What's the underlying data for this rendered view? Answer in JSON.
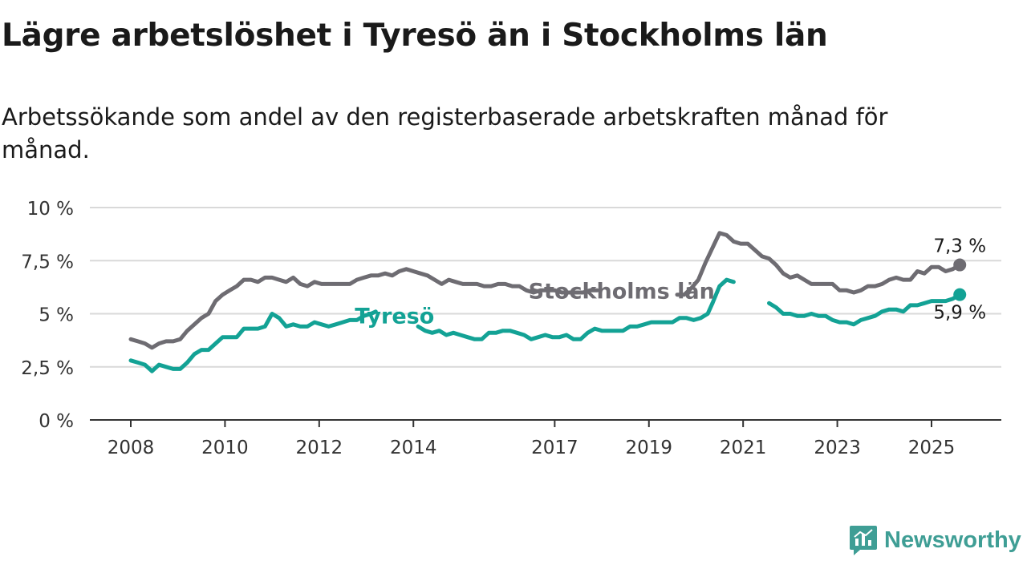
{
  "title": "Lägre arbetslöshet i Tyresö än i Stockholms län",
  "subtitle": "Arbetssökande som andel av den registerbaserade arbetskraften månad för månad.",
  "brand": "Newsworthy",
  "colors": {
    "stockholm": "#6e6c72",
    "tyreso": "#13a295",
    "grid": "#d9d9d9",
    "axis": "#333333",
    "brand": "#3f9e95"
  },
  "chart_data": {
    "type": "line",
    "ylim": [
      0,
      10
    ],
    "xlim": [
      2008.0,
      2025.75
    ],
    "grid": true,
    "y_ticks": [
      {
        "value": 0,
        "label": "0 %"
      },
      {
        "value": 2.5,
        "label": "2,5 %"
      },
      {
        "value": 5,
        "label": "5 %"
      },
      {
        "value": 7.5,
        "label": "7,5 %"
      },
      {
        "value": 10,
        "label": "10 %"
      }
    ],
    "x_ticks": [
      {
        "value": 2008,
        "label": "2008"
      },
      {
        "value": 2010,
        "label": "2010"
      },
      {
        "value": 2012,
        "label": "2012"
      },
      {
        "value": 2014,
        "label": "2014"
      },
      {
        "value": 2017,
        "label": "2017"
      },
      {
        "value": 2019,
        "label": "2019"
      },
      {
        "value": 2021,
        "label": "2021"
      },
      {
        "value": 2023,
        "label": "2023"
      },
      {
        "value": 2025,
        "label": "2025"
      }
    ],
    "series": [
      {
        "name": "Stockholms län",
        "end_label": "7,3 %",
        "points": [
          [
            2008.0,
            3.8
          ],
          [
            2008.15,
            3.7
          ],
          [
            2008.3,
            3.6
          ],
          [
            2008.45,
            3.4
          ],
          [
            2008.6,
            3.6
          ],
          [
            2008.75,
            3.7
          ],
          [
            2008.9,
            3.7
          ],
          [
            2009.05,
            3.8
          ],
          [
            2009.2,
            4.2
          ],
          [
            2009.35,
            4.5
          ],
          [
            2009.5,
            4.8
          ],
          [
            2009.65,
            5.0
          ],
          [
            2009.8,
            5.6
          ],
          [
            2009.95,
            5.9
          ],
          [
            2010.1,
            6.1
          ],
          [
            2010.25,
            6.3
          ],
          [
            2010.4,
            6.6
          ],
          [
            2010.55,
            6.6
          ],
          [
            2010.7,
            6.5
          ],
          [
            2010.85,
            6.7
          ],
          [
            2011.0,
            6.7
          ],
          [
            2011.15,
            6.6
          ],
          [
            2011.3,
            6.5
          ],
          [
            2011.45,
            6.7
          ],
          [
            2011.6,
            6.4
          ],
          [
            2011.75,
            6.3
          ],
          [
            2011.9,
            6.5
          ],
          [
            2012.05,
            6.4
          ],
          [
            2012.2,
            6.4
          ],
          [
            2012.35,
            6.4
          ],
          [
            2012.5,
            6.4
          ],
          [
            2012.65,
            6.4
          ],
          [
            2012.8,
            6.6
          ],
          [
            2012.95,
            6.7
          ],
          [
            2013.1,
            6.8
          ],
          [
            2013.25,
            6.8
          ],
          [
            2013.4,
            6.9
          ],
          [
            2013.55,
            6.8
          ],
          [
            2013.7,
            7.0
          ],
          [
            2013.85,
            7.1
          ],
          [
            2014.0,
            7.0
          ],
          [
            2014.15,
            6.9
          ],
          [
            2014.3,
            6.8
          ],
          [
            2014.45,
            6.6
          ],
          [
            2014.6,
            6.4
          ],
          [
            2014.75,
            6.6
          ],
          [
            2014.9,
            6.5
          ],
          [
            2015.05,
            6.4
          ],
          [
            2015.2,
            6.4
          ],
          [
            2015.35,
            6.4
          ],
          [
            2015.5,
            6.3
          ],
          [
            2015.65,
            6.3
          ],
          [
            2015.8,
            6.4
          ],
          [
            2015.95,
            6.4
          ],
          [
            2016.1,
            6.3
          ],
          [
            2016.25,
            6.3
          ],
          [
            2016.4,
            6.1
          ],
          [
            2016.55,
            6.0
          ],
          [
            2016.7,
            6.1
          ],
          [
            2016.85,
            6.1
          ],
          [
            2017.0,
            6.1
          ],
          [
            2017.15,
            6.0
          ],
          [
            2017.3,
            6.0
          ],
          [
            2017.45,
            6.0
          ],
          [
            2017.6,
            6.0
          ],
          [
            2017.75,
            6.1
          ],
          [
            2017.9,
            6.1
          ],
          [
            2019.6,
            5.9
          ],
          [
            2019.75,
            5.9
          ],
          [
            2019.9,
            6.2
          ],
          [
            2020.05,
            6.6
          ],
          [
            2020.2,
            7.4
          ],
          [
            2020.35,
            8.1
          ],
          [
            2020.5,
            8.8
          ],
          [
            2020.65,
            8.7
          ],
          [
            2020.8,
            8.4
          ],
          [
            2020.95,
            8.3
          ],
          [
            2021.1,
            8.3
          ],
          [
            2021.25,
            8.0
          ],
          [
            2021.4,
            7.7
          ],
          [
            2021.55,
            7.6
          ],
          [
            2021.7,
            7.3
          ],
          [
            2021.85,
            6.9
          ],
          [
            2022.0,
            6.7
          ],
          [
            2022.15,
            6.8
          ],
          [
            2022.3,
            6.6
          ],
          [
            2022.45,
            6.4
          ],
          [
            2022.6,
            6.4
          ],
          [
            2022.75,
            6.4
          ],
          [
            2022.9,
            6.4
          ],
          [
            2023.05,
            6.1
          ],
          [
            2023.2,
            6.1
          ],
          [
            2023.35,
            6.0
          ],
          [
            2023.5,
            6.1
          ],
          [
            2023.65,
            6.3
          ],
          [
            2023.8,
            6.3
          ],
          [
            2023.95,
            6.4
          ],
          [
            2024.1,
            6.6
          ],
          [
            2024.25,
            6.7
          ],
          [
            2024.4,
            6.6
          ],
          [
            2024.55,
            6.6
          ],
          [
            2024.7,
            7.0
          ],
          [
            2024.85,
            6.9
          ],
          [
            2025.0,
            7.2
          ],
          [
            2025.15,
            7.2
          ],
          [
            2025.3,
            7.0
          ],
          [
            2025.45,
            7.1
          ],
          [
            2025.6,
            7.3
          ]
        ]
      },
      {
        "name": "Tyresö",
        "end_label": "5,9 %",
        "points": [
          [
            2008.0,
            2.8
          ],
          [
            2008.15,
            2.7
          ],
          [
            2008.3,
            2.6
          ],
          [
            2008.45,
            2.3
          ],
          [
            2008.6,
            2.6
          ],
          [
            2008.75,
            2.5
          ],
          [
            2008.9,
            2.4
          ],
          [
            2009.05,
            2.4
          ],
          [
            2009.2,
            2.7
          ],
          [
            2009.35,
            3.1
          ],
          [
            2009.5,
            3.3
          ],
          [
            2009.65,
            3.3
          ],
          [
            2009.8,
            3.6
          ],
          [
            2009.95,
            3.9
          ],
          [
            2010.1,
            3.9
          ],
          [
            2010.25,
            3.9
          ],
          [
            2010.4,
            4.3
          ],
          [
            2010.55,
            4.3
          ],
          [
            2010.7,
            4.3
          ],
          [
            2010.85,
            4.4
          ],
          [
            2011.0,
            5.0
          ],
          [
            2011.15,
            4.8
          ],
          [
            2011.3,
            4.4
          ],
          [
            2011.45,
            4.5
          ],
          [
            2011.6,
            4.4
          ],
          [
            2011.75,
            4.4
          ],
          [
            2011.9,
            4.6
          ],
          [
            2012.05,
            4.5
          ],
          [
            2012.2,
            4.4
          ],
          [
            2012.35,
            4.5
          ],
          [
            2012.5,
            4.6
          ],
          [
            2012.65,
            4.7
          ],
          [
            2012.8,
            4.7
          ],
          [
            2012.95,
            4.9
          ],
          [
            2013.1,
            5.0
          ],
          [
            2013.2,
            5.1
          ],
          [
            2014.1,
            4.4
          ],
          [
            2014.25,
            4.2
          ],
          [
            2014.4,
            4.1
          ],
          [
            2014.55,
            4.2
          ],
          [
            2014.7,
            4.0
          ],
          [
            2014.85,
            4.1
          ],
          [
            2015.0,
            4.0
          ],
          [
            2015.15,
            3.9
          ],
          [
            2015.3,
            3.8
          ],
          [
            2015.45,
            3.8
          ],
          [
            2015.6,
            4.1
          ],
          [
            2015.75,
            4.1
          ],
          [
            2015.9,
            4.2
          ],
          [
            2016.05,
            4.2
          ],
          [
            2016.2,
            4.1
          ],
          [
            2016.35,
            4.0
          ],
          [
            2016.5,
            3.8
          ],
          [
            2016.65,
            3.9
          ],
          [
            2016.8,
            4.0
          ],
          [
            2016.95,
            3.9
          ],
          [
            2017.1,
            3.9
          ],
          [
            2017.25,
            4.0
          ],
          [
            2017.4,
            3.8
          ],
          [
            2017.55,
            3.8
          ],
          [
            2017.7,
            4.1
          ],
          [
            2017.85,
            4.3
          ],
          [
            2018.0,
            4.2
          ],
          [
            2018.15,
            4.2
          ],
          [
            2018.3,
            4.2
          ],
          [
            2018.45,
            4.2
          ],
          [
            2018.6,
            4.4
          ],
          [
            2018.75,
            4.4
          ],
          [
            2018.9,
            4.5
          ],
          [
            2019.05,
            4.6
          ],
          [
            2019.2,
            4.6
          ],
          [
            2019.35,
            4.6
          ],
          [
            2019.5,
            4.6
          ],
          [
            2019.65,
            4.8
          ],
          [
            2019.8,
            4.8
          ],
          [
            2019.95,
            4.7
          ],
          [
            2020.1,
            4.8
          ],
          [
            2020.25,
            5.0
          ],
          [
            2020.35,
            5.5
          ]
        ]
      }
    ],
    "tyreso_tail": [
      [
        2021.55,
        5.5
      ],
      [
        2021.7,
        5.3
      ],
      [
        2021.85,
        5.0
      ],
      [
        2022.0,
        5.0
      ],
      [
        2022.15,
        4.9
      ],
      [
        2022.3,
        4.9
      ],
      [
        2022.45,
        5.0
      ],
      [
        2022.6,
        4.9
      ],
      [
        2022.75,
        4.9
      ],
      [
        2022.9,
        4.7
      ],
      [
        2023.05,
        4.6
      ],
      [
        2023.2,
        4.6
      ],
      [
        2023.35,
        4.5
      ],
      [
        2023.5,
        4.7
      ],
      [
        2023.65,
        4.8
      ],
      [
        2023.8,
        4.9
      ],
      [
        2023.95,
        5.1
      ],
      [
        2024.1,
        5.2
      ],
      [
        2024.25,
        5.2
      ],
      [
        2024.4,
        5.1
      ],
      [
        2024.55,
        5.4
      ],
      [
        2024.7,
        5.4
      ],
      [
        2024.85,
        5.5
      ],
      [
        2025.0,
        5.6
      ],
      [
        2025.15,
        5.6
      ],
      [
        2025.3,
        5.6
      ],
      [
        2025.45,
        5.7
      ],
      [
        2025.6,
        5.9
      ]
    ],
    "stockholm_head_gap": [
      2017.9,
      2019.6
    ],
    "tyreso_peak": [
      [
        2020.35,
        5.5
      ],
      [
        2020.5,
        6.3
      ],
      [
        2020.65,
        6.6
      ],
      [
        2020.8,
        6.5
      ]
    ],
    "series_labels": {
      "stockholm": "Stockholms län",
      "tyreso": "Tyresö"
    }
  }
}
